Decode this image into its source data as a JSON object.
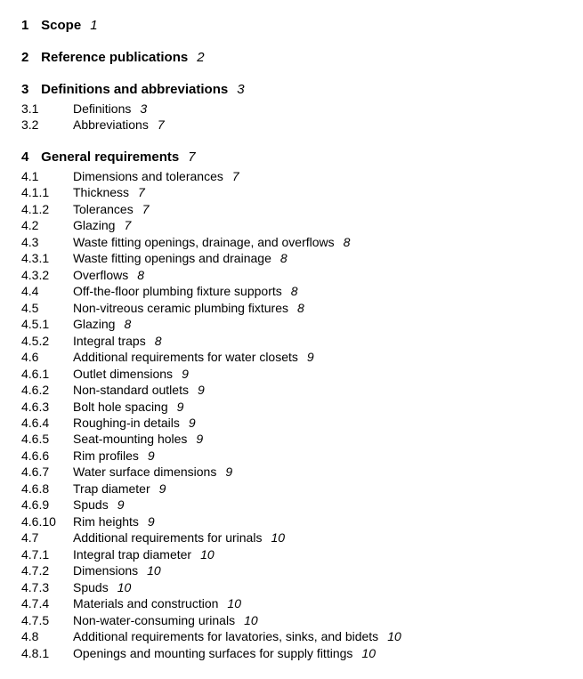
{
  "sections": [
    {
      "number": "1",
      "title": "Scope",
      "page": "1",
      "entries": []
    },
    {
      "number": "2",
      "title": "Reference publications",
      "page": "2",
      "entries": []
    },
    {
      "number": "3",
      "title": "Definitions and abbreviations",
      "page": "3",
      "entries": [
        {
          "number": "3.1",
          "title": "Definitions",
          "page": "3"
        },
        {
          "number": "3.2",
          "title": "Abbreviations",
          "page": "7"
        }
      ]
    },
    {
      "number": "4",
      "title": "General requirements",
      "page": "7",
      "entries": [
        {
          "number": "4.1",
          "title": "Dimensions and tolerances",
          "page": "7"
        },
        {
          "number": "4.1.1",
          "title": "Thickness",
          "page": "7"
        },
        {
          "number": "4.1.2",
          "title": "Tolerances",
          "page": "7"
        },
        {
          "number": "4.2",
          "title": "Glazing",
          "page": "7"
        },
        {
          "number": "4.3",
          "title": "Waste fitting openings, drainage, and overflows",
          "page": "8"
        },
        {
          "number": "4.3.1",
          "title": "Waste fitting openings and drainage",
          "page": "8"
        },
        {
          "number": "4.3.2",
          "title": "Overflows",
          "page": "8"
        },
        {
          "number": "4.4",
          "title": "Off-the-floor plumbing fixture supports",
          "page": "8"
        },
        {
          "number": "4.5",
          "title": "Non-vitreous ceramic plumbing fixtures",
          "page": "8"
        },
        {
          "number": "4.5.1",
          "title": "Glazing",
          "page": "8"
        },
        {
          "number": "4.5.2",
          "title": "Integral traps",
          "page": "8"
        },
        {
          "number": "4.6",
          "title": "Additional requirements for water closets",
          "page": "9"
        },
        {
          "number": "4.6.1",
          "title": "Outlet dimensions",
          "page": "9"
        },
        {
          "number": "4.6.2",
          "title": "Non-standard outlets",
          "page": "9"
        },
        {
          "number": "4.6.3",
          "title": "Bolt hole spacing",
          "page": "9"
        },
        {
          "number": "4.6.4",
          "title": "Roughing-in details",
          "page": "9"
        },
        {
          "number": "4.6.5",
          "title": "Seat-mounting holes",
          "page": "9"
        },
        {
          "number": "4.6.6",
          "title": "Rim profiles",
          "page": "9"
        },
        {
          "number": "4.6.7",
          "title": "Water surface dimensions",
          "page": "9"
        },
        {
          "number": "4.6.8",
          "title": "Trap diameter",
          "page": "9"
        },
        {
          "number": "4.6.9",
          "title": "Spuds",
          "page": "9"
        },
        {
          "number": "4.6.10",
          "title": "Rim heights",
          "page": "9"
        },
        {
          "number": "4.7",
          "title": "Additional requirements for urinals",
          "page": "10"
        },
        {
          "number": "4.7.1",
          "title": "Integral trap diameter",
          "page": "10"
        },
        {
          "number": "4.7.2",
          "title": "Dimensions",
          "page": "10"
        },
        {
          "number": "4.7.3",
          "title": "Spuds",
          "page": "10"
        },
        {
          "number": "4.7.4",
          "title": "Materials and construction",
          "page": "10"
        },
        {
          "number": "4.7.5",
          "title": "Non-water-consuming urinals",
          "page": "10"
        },
        {
          "number": "4.8",
          "title": "Additional requirements for lavatories, sinks, and bidets",
          "page": "10"
        },
        {
          "number": "4.8.1",
          "title": "Openings and mounting surfaces for supply fittings",
          "page": "10"
        }
      ]
    }
  ]
}
